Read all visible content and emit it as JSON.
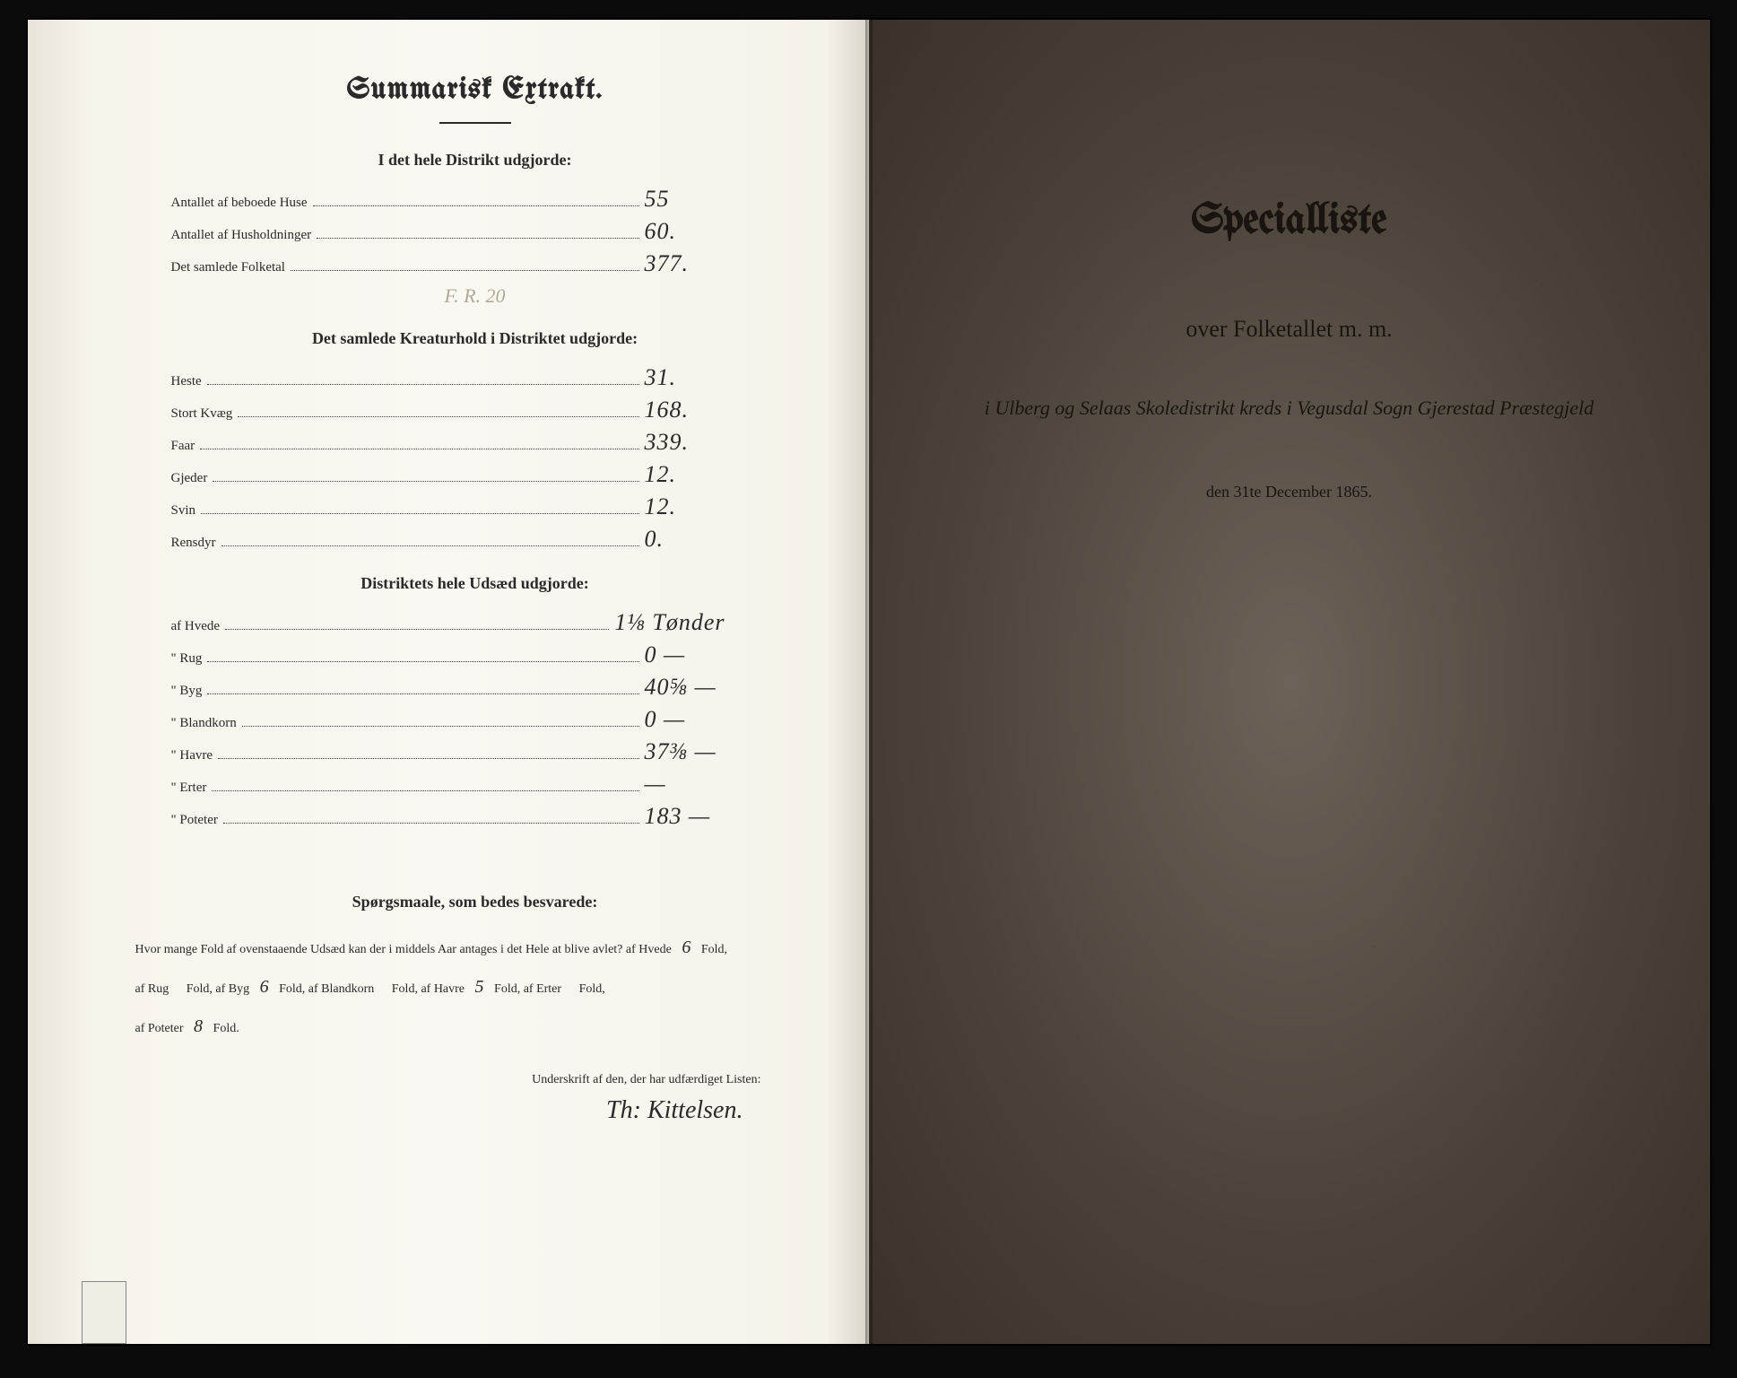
{
  "left_page": {
    "main_title": "Summarisk Extrakt.",
    "section1": {
      "header": "I det hele Distrikt udgjorde:",
      "rows": [
        {
          "label": "Antallet af beboede Huse",
          "value": "55"
        },
        {
          "label": "Antallet af Husholdninger",
          "value": "60."
        },
        {
          "label": "Det samlede Folketal",
          "value": "377."
        }
      ],
      "faded_note": "F.  R. 20"
    },
    "section2": {
      "header": "Det samlede Kreaturhold i Distriktet udgjorde:",
      "rows": [
        {
          "label": "Heste",
          "value": "31."
        },
        {
          "label": "Stort Kvæg",
          "value": "168."
        },
        {
          "label": "Faar",
          "value": "339."
        },
        {
          "label": "Gjeder",
          "value": "12."
        },
        {
          "label": "Svin",
          "value": "12."
        },
        {
          "label": "Rensdyr",
          "value": "0."
        }
      ]
    },
    "section3": {
      "header": "Distriktets hele Udsæd udgjorde:",
      "rows": [
        {
          "label": "af Hvede",
          "value": "1⅛ Tønder"
        },
        {
          "label": "\" Rug",
          "value": "0   —"
        },
        {
          "label": "\" Byg",
          "value": "40⅝ —"
        },
        {
          "label": "\" Blandkorn",
          "value": "0   —"
        },
        {
          "label": "\" Havre",
          "value": "37⅜ —"
        },
        {
          "label": "\" Erter",
          "value": "—"
        },
        {
          "label": "\" Poteter",
          "value": "183  —"
        }
      ]
    },
    "questions": {
      "header": "Spørgsmaale, som bedes besvarede:",
      "line1_pre": "Hvor mange Fold af ovenstaaende Udsæd kan der i middels Aar antages i det Hele at blive avlet? af Hvede",
      "hvede": "6",
      "line1_post": "Fold,",
      "line2_pre": "af Rug",
      "rug": " ",
      "line2_mid1": "Fold, af Byg",
      "byg": "6",
      "line2_mid2": "Fold, af Blandkorn",
      "blandkorn": " ",
      "line2_mid3": "Fold, af Havre",
      "havre": "5",
      "line2_mid4": "Fold, af Erter",
      "erter": " ",
      "line2_post": "Fold,",
      "line3_pre": "af Poteter",
      "poteter": "8",
      "line3_post": "Fold."
    },
    "signature_label": "Underskrift af den, der har udfærdiget Listen:",
    "signature": "Th: Kittelsen."
  },
  "right_page": {
    "title": "Specialliste",
    "subtitle": "over Folketallet m. m.",
    "location_line": "i Ulberg og Selaas Skoledistrikt kreds i Vegusdal Sogn Gjerestad Præstegjeld",
    "date_line": "den 31te December 1865."
  },
  "colors": {
    "paper_light": "#f7f4ec",
    "paper_dark": "#5a5248",
    "ink": "#2a2a2a",
    "background": "#0a0a0a"
  }
}
